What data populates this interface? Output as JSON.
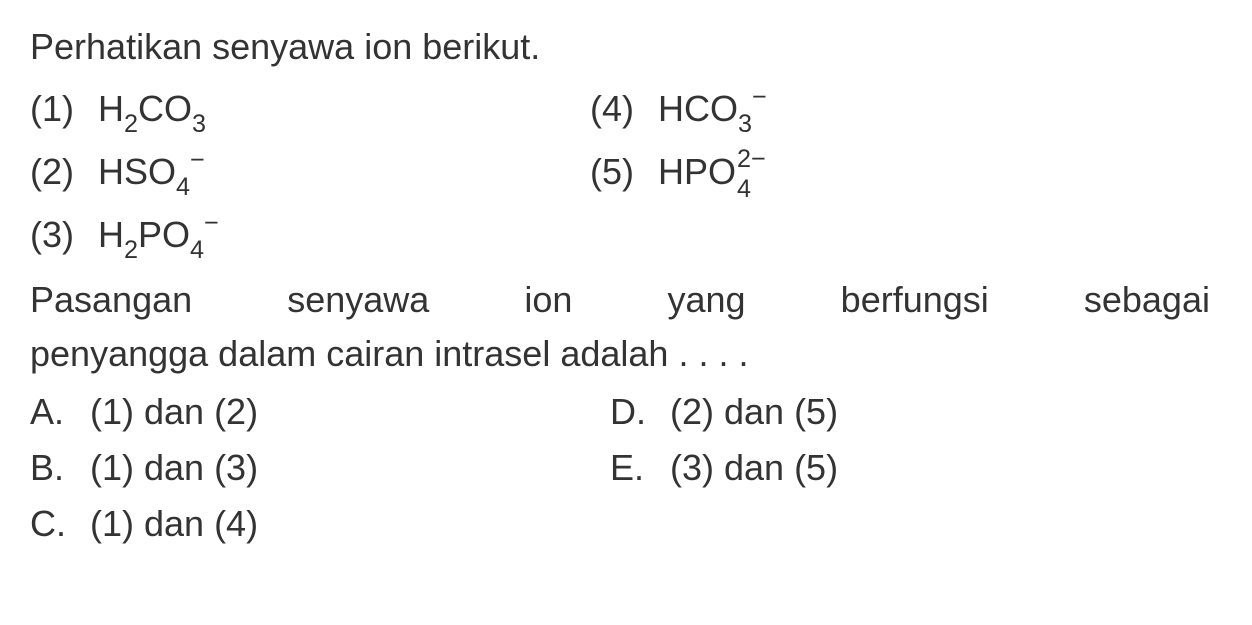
{
  "colors": {
    "background": "#ffffff",
    "text": "#333333"
  },
  "typography": {
    "fontsize": 36,
    "fontFamily": "Arial, Helvetica, sans-serif",
    "lineHeight": 1.5
  },
  "intro": "Perhatikan senyawa ion berikut.",
  "compounds": {
    "row1": {
      "left": {
        "number": "(1)",
        "formula_html": "H<span class='sub'>2</span>CO<span class='sub'>3</span>"
      },
      "right": {
        "number": "(4)",
        "formula_html": "HCO<span class='sub'>3</span><span class='sup'>−</span>"
      }
    },
    "row2": {
      "left": {
        "number": "(2)",
        "formula_html": "HSO<span class='sub'>4</span><span class='sup'>−</span>"
      },
      "right": {
        "number": "(5)",
        "formula_html": "HPO<span class='supsub'><span class='top'>2−</span><span class='bot'>4</span></span>"
      }
    },
    "row3": {
      "left": {
        "number": "(3)",
        "formula_html": "H<span class='sub'>2</span>PO<span class='sub'>4</span><span class='sup'>−</span>"
      }
    }
  },
  "question_line1_words": [
    "Pasangan",
    "senyawa",
    "ion",
    "yang",
    "berfungsi",
    "sebagai"
  ],
  "question_line2": "penyangga dalam cairan intrasel adalah . . . .",
  "options": {
    "rowA": {
      "left": {
        "letter": "A.",
        "text": "(1) dan (2)"
      },
      "right": {
        "letter": "D.",
        "text": "(2) dan (5)"
      }
    },
    "rowB": {
      "left": {
        "letter": "B.",
        "text": "(1) dan (3)"
      },
      "right": {
        "letter": "E.",
        "text": "(3) dan (5)"
      }
    },
    "rowC": {
      "left": {
        "letter": "C.",
        "text": "(1) dan (4)"
      }
    }
  }
}
